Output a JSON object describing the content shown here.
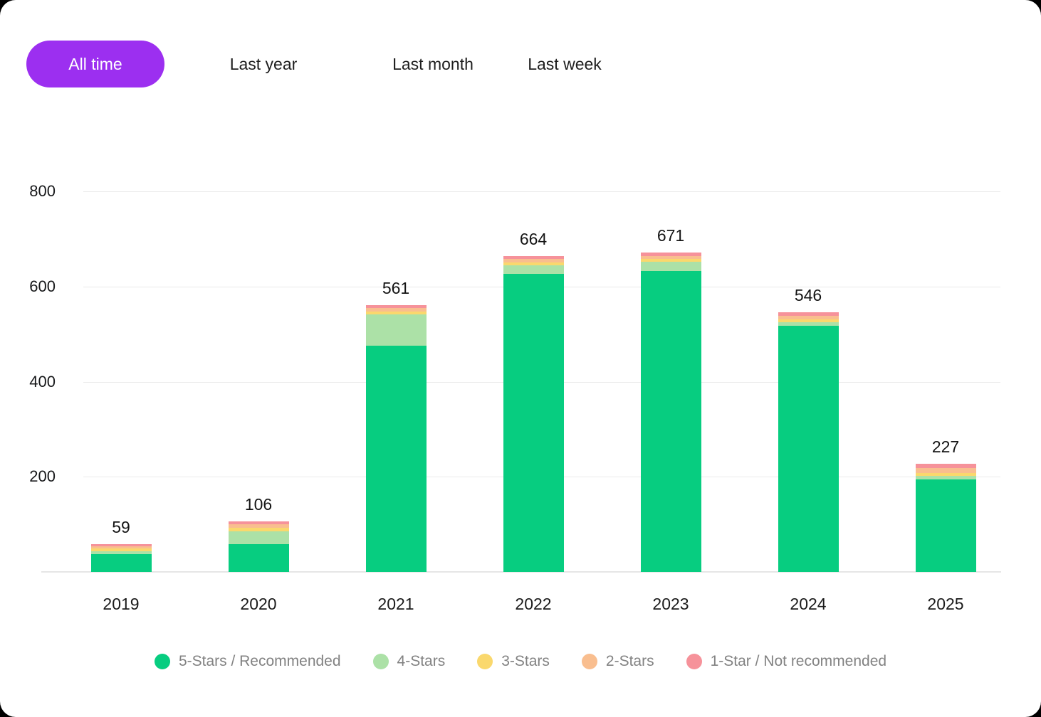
{
  "tabs": {
    "items": [
      {
        "label": "All time",
        "active": true
      },
      {
        "label": "Last year",
        "active": false
      },
      {
        "label": "Last month",
        "active": false
      },
      {
        "label": "Last week",
        "active": false
      }
    ]
  },
  "colors": {
    "active_tab_bg": "#9C2FF0",
    "active_tab_text": "#FFFFFF",
    "grid": "#EAEAEA"
  },
  "chart_data": {
    "type": "bar",
    "stacked": true,
    "categories": [
      "2019",
      "2020",
      "2021",
      "2022",
      "2023",
      "2024",
      "2025"
    ],
    "series": [
      {
        "name": "5-Stars / Recommended",
        "color": "#07CD80",
        "values": [
          38,
          58,
          476,
          626,
          632,
          518,
          194
        ]
      },
      {
        "name": "4-Stars",
        "color": "#ACE1A7",
        "values": [
          6,
          28,
          65,
          18,
          20,
          7,
          8
        ]
      },
      {
        "name": "3-Stars",
        "color": "#FAD86D",
        "values": [
          5,
          7,
          7,
          7,
          6,
          6,
          6
        ]
      },
      {
        "name": "2-Stars",
        "color": "#F9BE8F",
        "values": [
          5,
          7,
          7,
          7,
          6,
          8,
          10
        ]
      },
      {
        "name": "1-Star / Not recommended",
        "color": "#F6929A",
        "values": [
          5,
          6,
          6,
          6,
          7,
          7,
          9
        ]
      }
    ],
    "totals": [
      59,
      106,
      561,
      664,
      671,
      546,
      227
    ],
    "title": "",
    "xlabel": "",
    "ylabel": "",
    "ylim": [
      0,
      800
    ],
    "yticks": [
      200,
      400,
      600,
      800
    ],
    "grid": true,
    "legend_position": "bottom"
  }
}
